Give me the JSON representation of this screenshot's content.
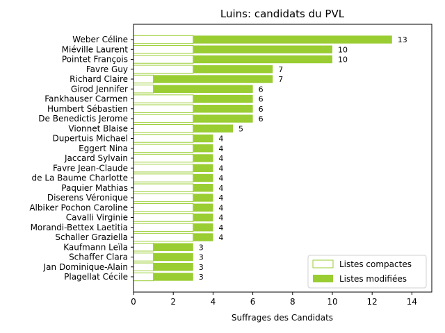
{
  "chart_data": {
    "type": "bar",
    "orientation": "horizontal",
    "stacked": true,
    "title": "Luins: candidats du PVL",
    "xlabel": "Suffrages des Candidats",
    "ylabel": "",
    "xlim": [
      0,
      15
    ],
    "xticks": [
      0,
      2,
      4,
      6,
      8,
      10,
      12,
      14
    ],
    "grid": false,
    "legend_position": "bottom-right",
    "colors": {
      "accent": "#9acd32",
      "outline": "#9acd32"
    },
    "categories": [
      "Weber Céline",
      "Miéville Laurent",
      "Pointet François",
      "Favre Guy",
      "Richard Claire",
      "Girod Jennifer",
      "Fankhauser Carmen",
      "Humbert Sébastien",
      "De Benedictis Jerome",
      "Vionnet Blaise",
      "Dupertuis Michael",
      "Eggert Nina",
      "Jaccard Sylvain",
      "Favre Jean-Claude",
      "de La Baume Charlotte",
      "Paquier Mathias",
      "Diserens Véronique",
      "Albiker Pochon Caroline",
      "Cavalli Virginie",
      "Morandi-Bettex Laetitia",
      "Schaller Graziella",
      "Kaufmann Leïla",
      "Schaffer Clara",
      "Jan Dominique-Alain",
      "Plagellat Cécile"
    ],
    "series": [
      {
        "name": "Listes compactes",
        "style": "outline",
        "values": [
          3,
          3,
          3,
          3,
          1,
          1,
          3,
          3,
          3,
          3,
          3,
          3,
          3,
          3,
          3,
          3,
          3,
          3,
          3,
          3,
          3,
          1,
          1,
          1,
          1
        ]
      },
      {
        "name": "Listes modifiées",
        "style": "filled",
        "values": [
          10,
          7,
          7,
          4,
          6,
          5,
          3,
          3,
          3,
          2,
          1,
          1,
          1,
          1,
          1,
          1,
          1,
          1,
          1,
          1,
          1,
          2,
          2,
          2,
          2
        ]
      }
    ],
    "totals": [
      13,
      10,
      10,
      7,
      7,
      6,
      6,
      6,
      6,
      5,
      4,
      4,
      4,
      4,
      4,
      4,
      4,
      4,
      4,
      4,
      4,
      3,
      3,
      3,
      3
    ]
  }
}
